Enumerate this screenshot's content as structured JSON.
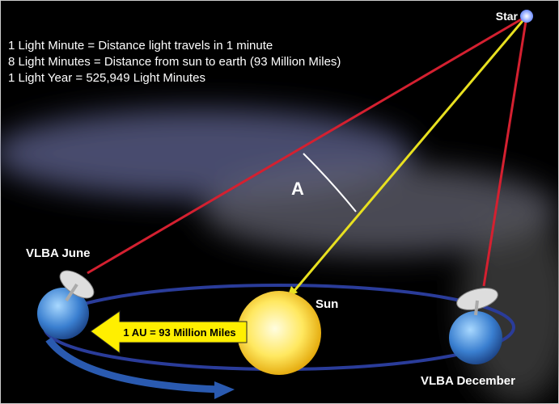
{
  "notes": [
    "1 Light Minute = Distance light travels in 1 minute",
    "8 Light Minutes = Distance from sun to earth (93 Million Miles)",
    "1 Light Year = 525,949 Light Minutes"
  ],
  "labels": {
    "star": "Star",
    "angle": "A",
    "vlba_june": "VLBA June",
    "sun": "Sun",
    "vlba_december": "VLBA December"
  },
  "arrow_label": "1 AU = 93 Million Miles"
}
